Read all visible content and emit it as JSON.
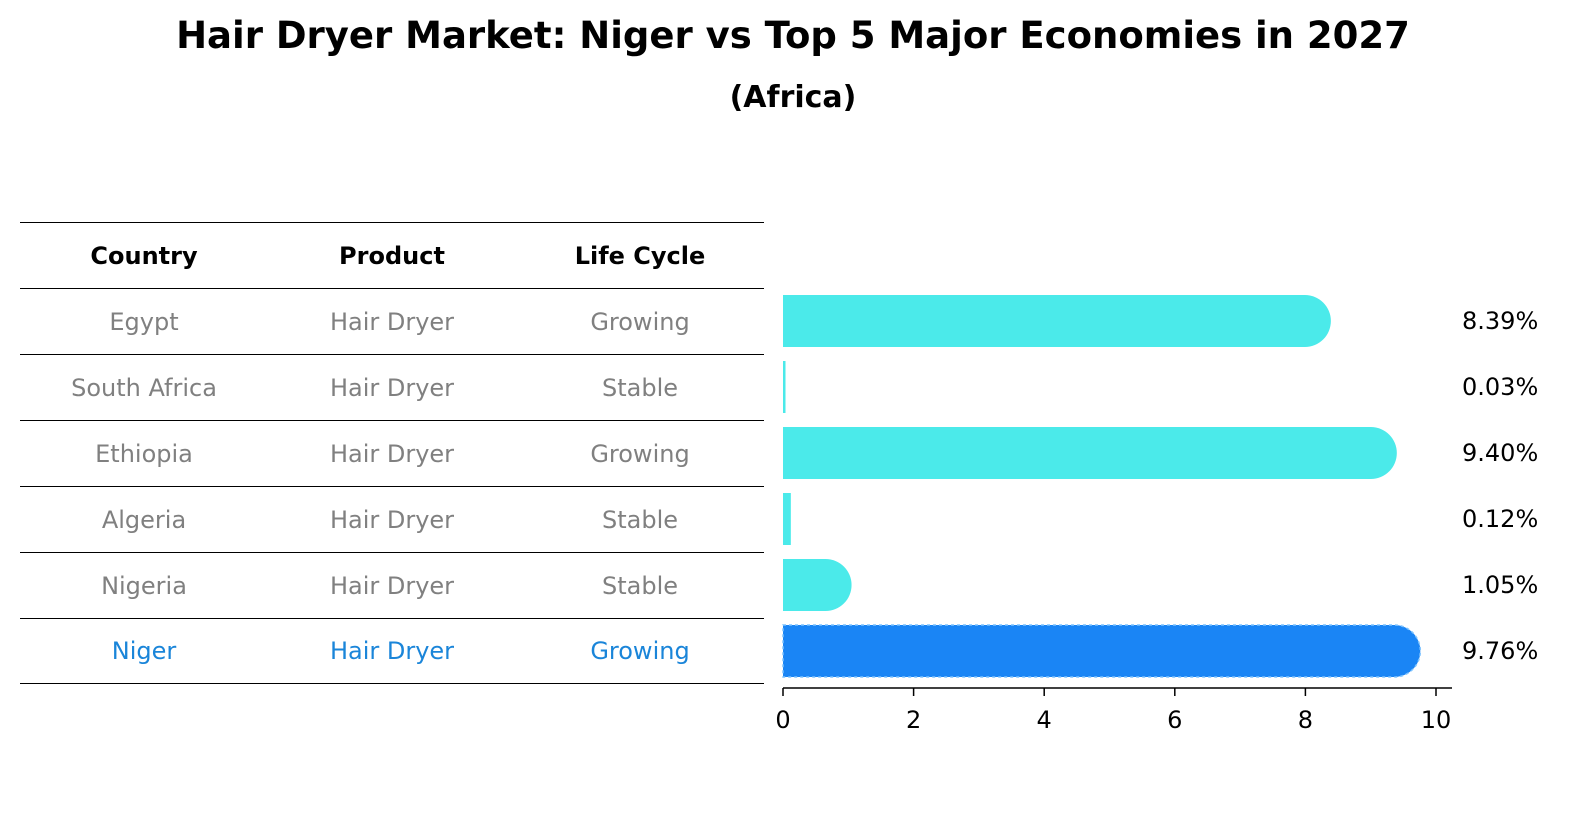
{
  "title": "Hair Dryer Market: Niger vs Top 5 Major Economies in 2027",
  "subtitle": "(Africa)",
  "table": {
    "headers": [
      "Country",
      "Product",
      "Life Cycle"
    ],
    "rows": [
      [
        "Egypt",
        "Hair Dryer",
        "Growing"
      ],
      [
        "South Africa",
        "Hair Dryer",
        "Stable"
      ],
      [
        "Ethiopia",
        "Hair Dryer",
        "Growing"
      ],
      [
        "Algeria",
        "Hair Dryer",
        "Stable"
      ],
      [
        "Nigeria",
        "Hair Dryer",
        "Stable"
      ],
      [
        "Niger",
        "Hair Dryer",
        "Growing"
      ]
    ],
    "highlight_row": 5
  },
  "chart_data": {
    "type": "bar",
    "orientation": "horizontal",
    "categories": [
      "Egypt",
      "South Africa",
      "Ethiopia",
      "Algeria",
      "Nigeria",
      "Niger"
    ],
    "values": [
      8.39,
      0.03,
      9.4,
      0.12,
      1.05,
      9.76
    ],
    "value_labels": [
      "8.39%",
      "0.03%",
      "9.40%",
      "0.12%",
      "1.05%",
      "9.76%"
    ],
    "xlim": [
      0,
      10.25
    ],
    "xticks": [
      "0",
      "2",
      "4",
      "6",
      "8",
      "10"
    ],
    "grid": false,
    "colors": {
      "default": "#4beaea",
      "highlight": "#1a85f5"
    },
    "highlight_index": 5
  }
}
